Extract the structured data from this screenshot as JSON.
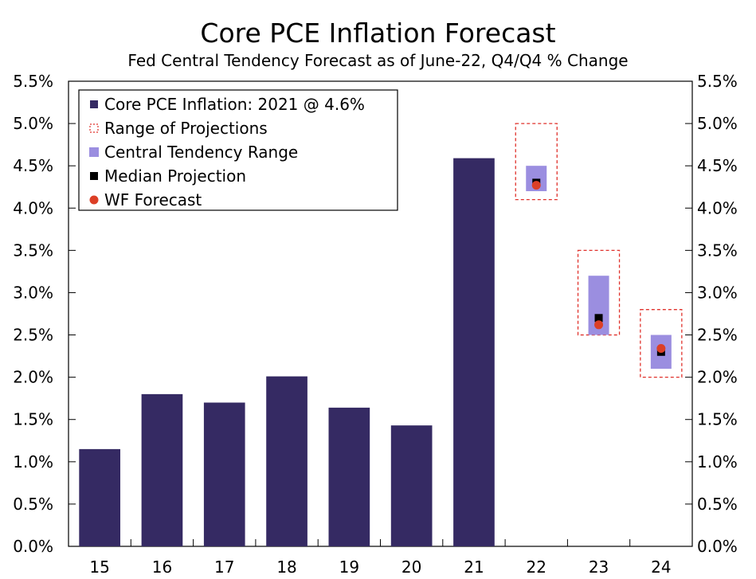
{
  "chart_data": {
    "type": "bar",
    "title": "Core PCE Inflation Forecast",
    "subtitle": "Fed Central Tendency Forecast as of June-22, Q4/Q4 % Change",
    "categories": [
      "15",
      "16",
      "17",
      "18",
      "19",
      "20",
      "21",
      "22",
      "23",
      "24"
    ],
    "ylim": [
      0,
      5.5
    ],
    "y_ticks": [
      "0.0%",
      "0.5%",
      "1.0%",
      "1.5%",
      "2.0%",
      "2.5%",
      "3.0%",
      "3.5%",
      "4.0%",
      "4.5%",
      "5.0%",
      "5.5%"
    ],
    "y_tick_values": [
      0,
      0.5,
      1.0,
      1.5,
      2.0,
      2.5,
      3.0,
      3.5,
      4.0,
      4.5,
      5.0,
      5.5
    ],
    "grid": false,
    "legend_position": "top-left",
    "series": [
      {
        "name": "Core PCE Inflation: 2021 @ 4.6%",
        "kind": "bar",
        "color": "#352a63",
        "points": [
          {
            "x": "15",
            "value": 1.15
          },
          {
            "x": "16",
            "value": 1.8
          },
          {
            "x": "17",
            "value": 1.7
          },
          {
            "x": "18",
            "value": 2.01
          },
          {
            "x": "19",
            "value": 1.64
          },
          {
            "x": "20",
            "value": 1.43
          },
          {
            "x": "21",
            "value": 4.59
          }
        ]
      },
      {
        "name": "Range of Projections",
        "kind": "dashed-box",
        "color": "#e0312b",
        "points": [
          {
            "x": "22",
            "low": 4.1,
            "high": 5.0
          },
          {
            "x": "23",
            "low": 2.5,
            "high": 3.5
          },
          {
            "x": "24",
            "low": 2.0,
            "high": 2.8
          }
        ]
      },
      {
        "name": "Central Tendency Range",
        "kind": "range-bar",
        "color": "#9b8ee0",
        "points": [
          {
            "x": "22",
            "low": 4.2,
            "high": 4.5
          },
          {
            "x": "23",
            "low": 2.5,
            "high": 3.2
          },
          {
            "x": "24",
            "low": 2.1,
            "high": 2.5
          }
        ]
      },
      {
        "name": "Median Projection",
        "kind": "square-marker",
        "color": "#000000",
        "points": [
          {
            "x": "22",
            "value": 4.3
          },
          {
            "x": "23",
            "value": 2.7
          },
          {
            "x": "24",
            "value": 2.3
          }
        ]
      },
      {
        "name": "WF Forecast",
        "kind": "circle-marker",
        "color": "#dc3f26",
        "points": [
          {
            "x": "22",
            "value": 4.27
          },
          {
            "x": "23",
            "value": 2.62
          },
          {
            "x": "24",
            "value": 2.34
          }
        ]
      }
    ]
  }
}
